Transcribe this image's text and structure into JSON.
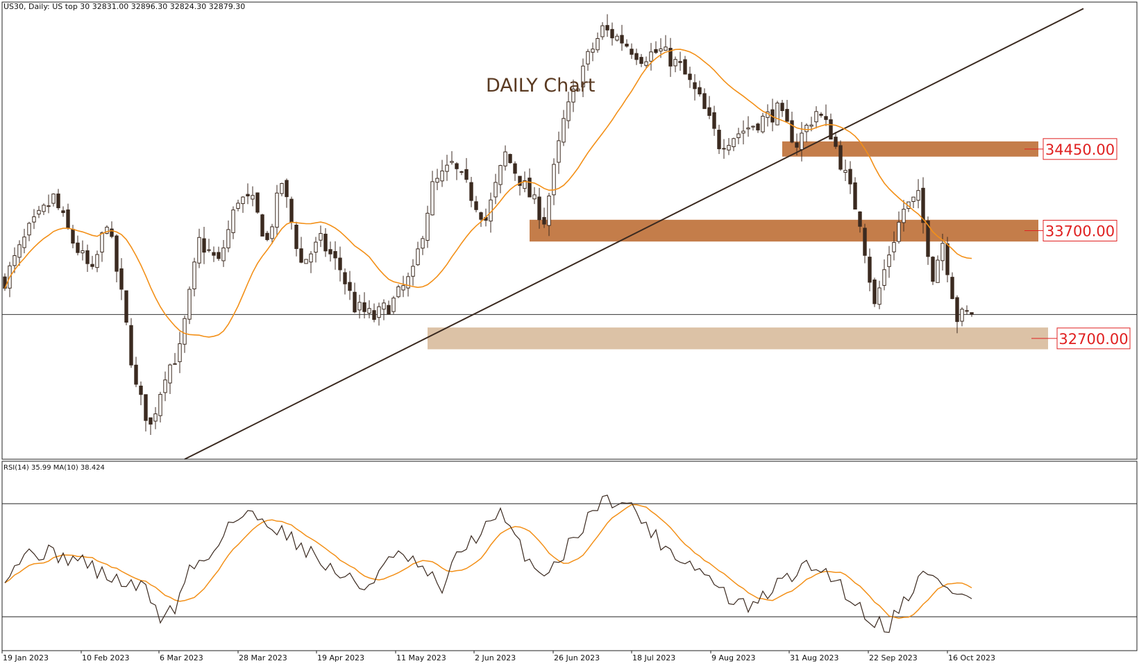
{
  "header": {
    "symbol_info": "US30, Daily:  US top 30  32831.00 32896.30 32824.30 32879.30"
  },
  "annotation": {
    "title": "DAILY Chart"
  },
  "colors": {
    "candle": "#3b2a20",
    "ma": "#f39018",
    "zone_dark": "#c47d4a",
    "zone_light": "#dcc2a6",
    "trendline": "#3b2a20",
    "label_red": "#e02020"
  },
  "chart_data": [
    {
      "type": "candlestick",
      "title": "DAILY Chart",
      "ylim": [
        31600,
        35800
      ],
      "x_ticks": [
        "19 Jan 2023",
        "10 Feb 2023",
        "6 Mar 2023",
        "28 Mar 2023",
        "19 Apr 2023",
        "11 May 2023",
        "2 Jun 2023",
        "26 Jun 2023",
        "18 Jul 2023",
        "9 Aug 2023",
        "31 Aug 2023",
        "22 Sep 2023",
        "16 Oct 2023"
      ],
      "close_path": [
        [
          0,
          33250
        ],
        [
          5,
          33700
        ],
        [
          10,
          34000
        ],
        [
          14,
          33600
        ],
        [
          18,
          33300
        ],
        [
          21,
          33800
        ],
        [
          24,
          33100
        ],
        [
          27,
          32250
        ],
        [
          30,
          31900
        ],
        [
          33,
          32400
        ],
        [
          36,
          32600
        ],
        [
          40,
          33600
        ],
        [
          44,
          33400
        ],
        [
          48,
          34000
        ],
        [
          51,
          33950
        ],
        [
          54,
          33600
        ],
        [
          57,
          34150
        ],
        [
          61,
          33400
        ],
        [
          65,
          33600
        ],
        [
          69,
          33350
        ],
        [
          72,
          33000
        ],
        [
          76,
          32900
        ],
        [
          80,
          33050
        ],
        [
          84,
          33300
        ],
        [
          88,
          34100
        ],
        [
          92,
          34300
        ],
        [
          95,
          34100
        ],
        [
          99,
          33800
        ],
        [
          103,
          34400
        ],
        [
          107,
          34100
        ],
        [
          111,
          33800
        ],
        [
          115,
          34700
        ],
        [
          119,
          35200
        ],
        [
          123,
          35550
        ],
        [
          127,
          35450
        ],
        [
          131,
          35300
        ],
        [
          135,
          35350
        ],
        [
          139,
          35200
        ],
        [
          143,
          34900
        ],
        [
          147,
          34500
        ],
        [
          151,
          34600
        ],
        [
          155,
          34700
        ],
        [
          159,
          34800
        ],
        [
          163,
          34500
        ],
        [
          167,
          34800
        ],
        [
          170,
          34600
        ],
        [
          173,
          34200
        ],
        [
          176,
          33800
        ],
        [
          179,
          33000
        ],
        [
          182,
          33500
        ],
        [
          185,
          33900
        ],
        [
          188,
          34000
        ],
        [
          191,
          33300
        ],
        [
          193,
          33600
        ],
        [
          196,
          32900
        ],
        [
          199,
          32950
        ]
      ],
      "moving_average": {
        "period": 20
      },
      "zones": [
        {
          "label": "34450.00",
          "low": 34380,
          "high": 34520,
          "start_index": 160
        },
        {
          "label": "33700.00",
          "low": 33600,
          "high": 33800,
          "start_index": 108
        },
        {
          "label": "32700.00",
          "low": 32610,
          "high": 32810,
          "start_index": 87
        }
      ],
      "horizontal_line": 32930,
      "trendline": {
        "from": [
          37,
          31600
        ],
        "to": [
          222,
          35740
        ]
      }
    },
    {
      "type": "line",
      "title": "RSI(14) 35.99 MA(10) 38.424",
      "ylim": [
        18,
        85
      ],
      "levels": [
        70,
        30
      ],
      "rsi_path": [
        [
          0,
          45
        ],
        [
          4,
          52
        ],
        [
          8,
          53
        ],
        [
          12,
          51
        ],
        [
          16,
          50
        ],
        [
          20,
          45
        ],
        [
          23,
          43
        ],
        [
          26,
          41
        ],
        [
          29,
          40
        ],
        [
          32,
          30
        ],
        [
          35,
          33
        ],
        [
          38,
          47
        ],
        [
          42,
          51
        ],
        [
          46,
          63
        ],
        [
          50,
          66
        ],
        [
          54,
          64
        ],
        [
          58,
          59
        ],
        [
          62,
          54
        ],
        [
          66,
          48
        ],
        [
          70,
          44
        ],
        [
          74,
          40
        ],
        [
          78,
          48
        ],
        [
          82,
          52
        ],
        [
          86,
          46
        ],
        [
          90,
          40
        ],
        [
          94,
          54
        ],
        [
          98,
          60
        ],
        [
          102,
          66
        ],
        [
          106,
          55
        ],
        [
          110,
          45
        ],
        [
          114,
          50
        ],
        [
          118,
          60
        ],
        [
          122,
          70
        ],
        [
          126,
          72
        ],
        [
          130,
          67
        ],
        [
          134,
          58
        ],
        [
          138,
          52
        ],
        [
          142,
          48
        ],
        [
          146,
          42
        ],
        [
          150,
          35
        ],
        [
          154,
          33
        ],
        [
          158,
          40
        ],
        [
          162,
          45
        ],
        [
          166,
          48
        ],
        [
          170,
          45
        ],
        [
          174,
          37
        ],
        [
          178,
          29
        ],
        [
          182,
          27
        ],
        [
          185,
          36
        ],
        [
          189,
          45
        ],
        [
          193,
          42
        ],
        [
          196,
          38
        ],
        [
          199,
          36
        ]
      ]
    }
  ]
}
